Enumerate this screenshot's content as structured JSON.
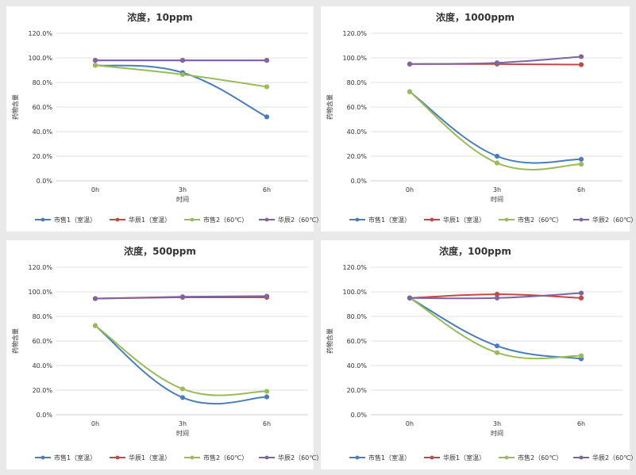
{
  "chart_data": [
    {
      "type": "line",
      "title": "浓度，10ppm",
      "xlabel": "时间",
      "ylabel": "药物含量",
      "categories": [
        "0h",
        "3h",
        "6h"
      ],
      "ylim": [
        0,
        1.2
      ],
      "yticks": [
        "0.0%",
        "20.0%",
        "40.0%",
        "60.0%",
        "80.0%",
        "100.0%",
        "120.0%"
      ],
      "grid": true,
      "legend": "bottom",
      "series": [
        {
          "name": "市售1（室温）",
          "color": "#4a7ebb",
          "values": [
            0.94,
            0.88,
            0.52
          ]
        },
        {
          "name": "华辰1（室温）",
          "color": "#be4b48",
          "values": [
            0.98,
            0.98,
            0.98
          ]
        },
        {
          "name": "市售2（60℃）",
          "color": "#9bbb59",
          "values": [
            0.94,
            0.865,
            0.765
          ]
        },
        {
          "name": "华辰2（60℃）",
          "color": "#8064a2",
          "values": [
            0.98,
            0.98,
            0.98
          ]
        }
      ]
    },
    {
      "type": "line",
      "title": "浓度，1000ppm",
      "xlabel": "时间",
      "ylabel": "药物含量",
      "categories": [
        "0h",
        "3h",
        "6h"
      ],
      "ylim": [
        0,
        1.2
      ],
      "yticks": [
        "0.0%",
        "20.0%",
        "40.0%",
        "60.0%",
        "80.0%",
        "100.0%",
        "120.0%"
      ],
      "grid": true,
      "legend": "bottom",
      "series": [
        {
          "name": "市售1（室温）",
          "color": "#4a7ebb",
          "values": [
            0.725,
            0.2,
            0.175
          ]
        },
        {
          "name": "华辰1（室温）",
          "color": "#be4b48",
          "values": [
            0.95,
            0.95,
            0.945
          ]
        },
        {
          "name": "市售2（60℃）",
          "color": "#9bbb59",
          "values": [
            0.725,
            0.145,
            0.135
          ]
        },
        {
          "name": "华辰2（60℃）",
          "color": "#8064a2",
          "values": [
            0.95,
            0.96,
            1.01
          ]
        }
      ]
    },
    {
      "type": "line",
      "title": "浓度，500ppm",
      "xlabel": "时间",
      "ylabel": "药物含量",
      "categories": [
        "0h",
        "3h",
        "6h"
      ],
      "ylim": [
        0,
        1.2
      ],
      "yticks": [
        "0.0%",
        "20.0%",
        "40.0%",
        "60.0%",
        "80.0%",
        "100.0%",
        "120.0%"
      ],
      "grid": true,
      "legend": "bottom",
      "series": [
        {
          "name": "市售1（室温）",
          "color": "#4a7ebb",
          "values": [
            0.725,
            0.14,
            0.145
          ]
        },
        {
          "name": "华辰1（室温）",
          "color": "#be4b48",
          "values": [
            0.945,
            0.955,
            0.955
          ]
        },
        {
          "name": "市售2（60℃）",
          "color": "#9bbb59",
          "values": [
            0.725,
            0.21,
            0.19
          ]
        },
        {
          "name": "华辰2（60℃）",
          "color": "#8064a2",
          "values": [
            0.945,
            0.96,
            0.965
          ]
        }
      ]
    },
    {
      "type": "line",
      "title": "浓度，100ppm",
      "xlabel": "时间",
      "ylabel": "药物含量",
      "categories": [
        "0h",
        "3h",
        "6h"
      ],
      "ylim": [
        0,
        1.2
      ],
      "yticks": [
        "0.0%",
        "20.0%",
        "40.0%",
        "60.0%",
        "80.0%",
        "100.0%",
        "120.0%"
      ],
      "grid": true,
      "legend": "bottom",
      "series": [
        {
          "name": "市售1（室温）",
          "color": "#4a7ebb",
          "values": [
            0.95,
            0.56,
            0.455
          ]
        },
        {
          "name": "华辰1（室温）",
          "color": "#be4b48",
          "values": [
            0.95,
            0.98,
            0.95
          ]
        },
        {
          "name": "市售2（60℃）",
          "color": "#9bbb59",
          "values": [
            0.95,
            0.505,
            0.48
          ]
        },
        {
          "name": "华辰2（60℃）",
          "color": "#8064a2",
          "values": [
            0.95,
            0.95,
            0.99
          ]
        }
      ]
    }
  ]
}
